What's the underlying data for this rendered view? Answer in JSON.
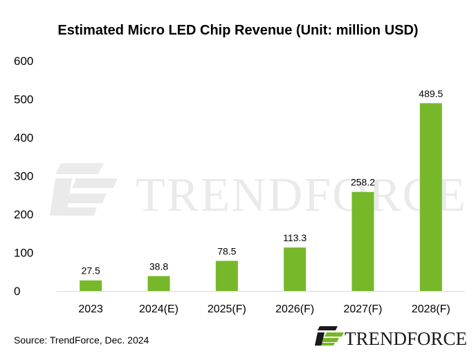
{
  "chart_data": {
    "type": "bar",
    "title": "Estimated Micro LED Chip Revenue (Unit: million USD)",
    "categories": [
      "2023",
      "2024(E)",
      "2025(F)",
      "2026(F)",
      "2027(F)",
      "2028(F)"
    ],
    "values": [
      27.5,
      38.8,
      78.5,
      113.3,
      258.2,
      489.5
    ],
    "data_labels": [
      "27.5",
      "38.8",
      "78.5",
      "113.3",
      "258.2",
      "489.5"
    ],
    "yticks": [
      "0",
      "100",
      "200",
      "300",
      "400",
      "500",
      "600"
    ],
    "ylim": [
      0,
      600
    ],
    "grid": false,
    "legend": "none",
    "bar_color": "#76b82a"
  },
  "source": "Source: TrendForce, Dec. 2024",
  "brand": {
    "logo_text": "TRENDFORCE",
    "watermark_text": "TRENDFORCE",
    "logo_icon": "trendforce-logo-icon"
  }
}
